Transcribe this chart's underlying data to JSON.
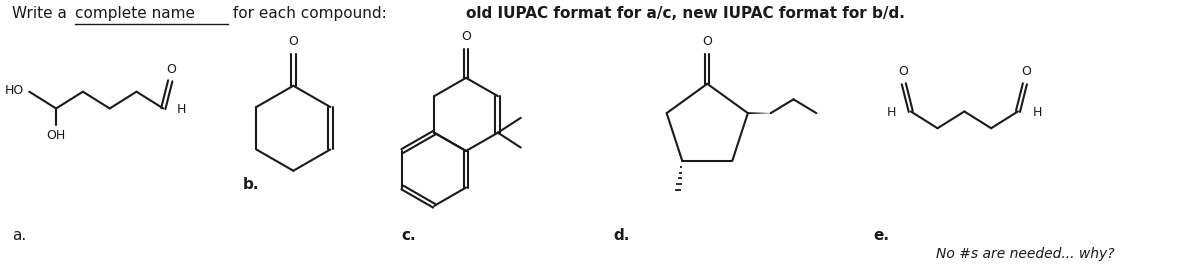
{
  "bg_color": "#ffffff",
  "line_color": "#1a1a1a",
  "label_a": "a.",
  "label_b": "b.",
  "label_c": "c.",
  "label_d": "d.",
  "label_e": "e.",
  "note": "No #s are needed... why?",
  "figsize": [
    12.0,
    2.66
  ],
  "dpi": 100
}
